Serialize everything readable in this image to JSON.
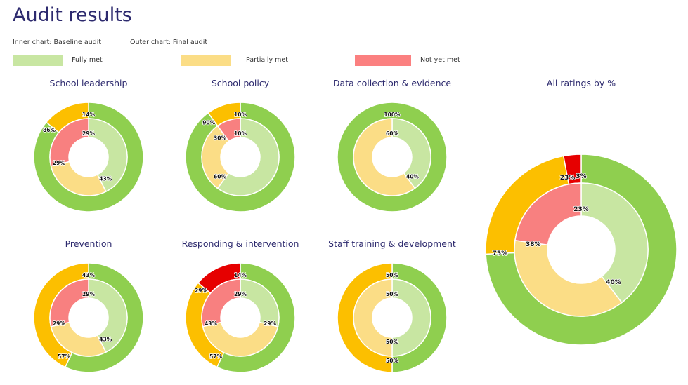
{
  "header": {
    "title": "Audit results",
    "inner_note": "Inner chart: Baseline audit",
    "outer_note": "Outer chart: Final audit"
  },
  "legend": [
    {
      "label": "Fully met",
      "color": "#c8e6a2"
    },
    {
      "label": "Partially met",
      "color": "#fbdd86"
    },
    {
      "label": "Not yet met",
      "color": "#fb8080"
    }
  ],
  "colors": {
    "inner": {
      "fully": "#c8e6a2",
      "partial": "#fbdd86",
      "not": "#f88080"
    },
    "outer": {
      "fully": "#8fcf4f",
      "partial": "#fcbf00",
      "not": "#e60000"
    }
  },
  "chart_data": [
    {
      "type": "donut",
      "title": "School leadership",
      "series": [
        {
          "name": "Baseline audit",
          "values": {
            "fully": 43,
            "partial": 29,
            "not": 29
          }
        },
        {
          "name": "Final audit",
          "values": {
            "fully": 86,
            "partial": 14,
            "not": 0
          }
        }
      ]
    },
    {
      "type": "donut",
      "title": "School policy",
      "series": [
        {
          "name": "Baseline audit",
          "values": {
            "fully": 60,
            "partial": 30,
            "not": 10
          }
        },
        {
          "name": "Final audit",
          "values": {
            "fully": 90,
            "partial": 10,
            "not": 0
          }
        }
      ]
    },
    {
      "type": "donut",
      "title": "Data collection & evidence",
      "series": [
        {
          "name": "Baseline audit",
          "values": {
            "fully": 40,
            "partial": 60,
            "not": 0
          }
        },
        {
          "name": "Final audit",
          "values": {
            "fully": 100,
            "partial": 0,
            "not": 0
          }
        }
      ]
    },
    {
      "type": "donut",
      "title": "All ratings by %",
      "series": [
        {
          "name": "Baseline audit",
          "values": {
            "fully": 40,
            "partial": 38,
            "not": 23
          }
        },
        {
          "name": "Final audit",
          "values": {
            "fully": 75,
            "partial": 23,
            "not": 3
          }
        }
      ]
    },
    {
      "type": "donut",
      "title": "Prevention",
      "series": [
        {
          "name": "Baseline audit",
          "values": {
            "fully": 43,
            "partial": 29,
            "not": 29
          }
        },
        {
          "name": "Final audit",
          "values": {
            "fully": 57,
            "partial": 43,
            "not": 0
          }
        }
      ]
    },
    {
      "type": "donut",
      "title": "Responding & intervention",
      "series": [
        {
          "name": "Baseline audit",
          "values": {
            "fully": 29,
            "partial": 43,
            "not": 29
          }
        },
        {
          "name": "Final audit",
          "values": {
            "fully": 57,
            "partial": 29,
            "not": 14
          }
        }
      ]
    },
    {
      "type": "donut",
      "title": "Staff training & development",
      "series": [
        {
          "name": "Baseline audit",
          "values": {
            "fully": 50,
            "partial": 50,
            "not": 0
          }
        },
        {
          "name": "Final audit",
          "values": {
            "fully": 50,
            "partial": 50,
            "not": 0
          }
        }
      ]
    }
  ]
}
